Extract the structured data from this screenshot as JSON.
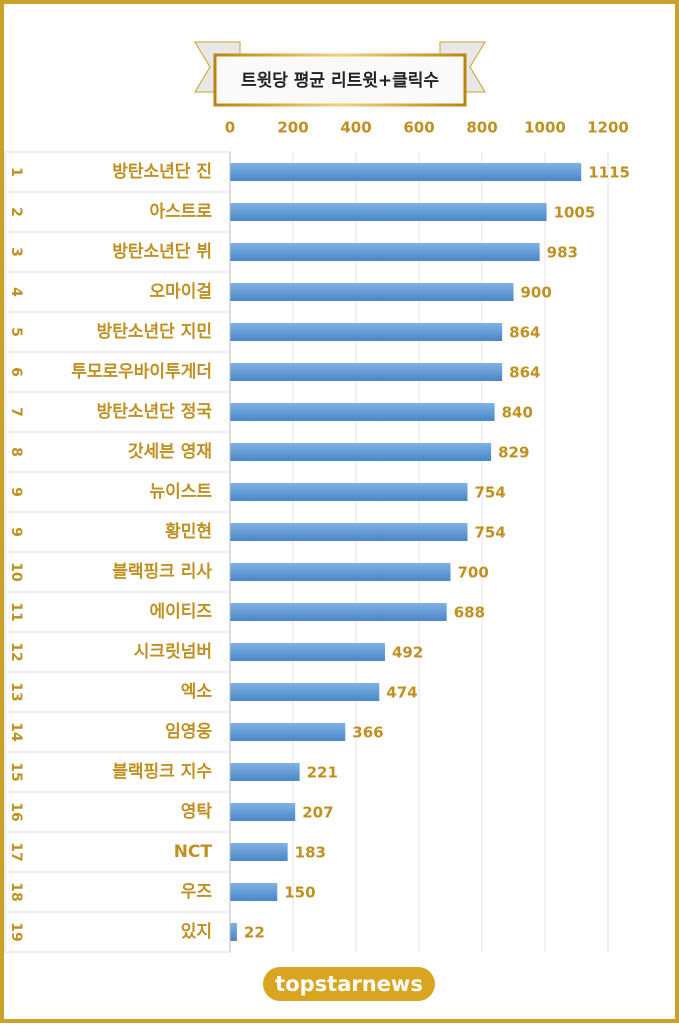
{
  "chart_data": {
    "type": "bar",
    "orientation": "horizontal",
    "title": "트윗당 평균 리트윗+클릭수",
    "ranks": [
      "1",
      "2",
      "3",
      "4",
      "5",
      "6",
      "7",
      "8",
      "9",
      "9",
      "10",
      "11",
      "12",
      "13",
      "14",
      "15",
      "16",
      "17",
      "18",
      "19"
    ],
    "categories": [
      "방탄소년단 진",
      "아스트로",
      "방탄소년단 뷔",
      "오마이걸",
      "방탄소년단 지민",
      "투모로우바이투게더",
      "방탄소년단 정국",
      "갓세븐 영재",
      "뉴이스트",
      "황민현",
      "블랙핑크 리사",
      "에이티즈",
      "시크릿넘버",
      "엑소",
      "임영웅",
      "블랙핑크 지수",
      "영탁",
      "NCT",
      "우즈",
      "있지"
    ],
    "values": [
      1115,
      1005,
      983,
      900,
      864,
      864,
      840,
      829,
      754,
      754,
      700,
      688,
      492,
      474,
      366,
      221,
      207,
      183,
      150,
      22
    ],
    "color": "#5b9bd5",
    "xlim": [
      0,
      1200
    ],
    "xticks": [
      0,
      200,
      400,
      600,
      800,
      1000,
      1200
    ],
    "grid": true,
    "footer": "topstarnews"
  }
}
